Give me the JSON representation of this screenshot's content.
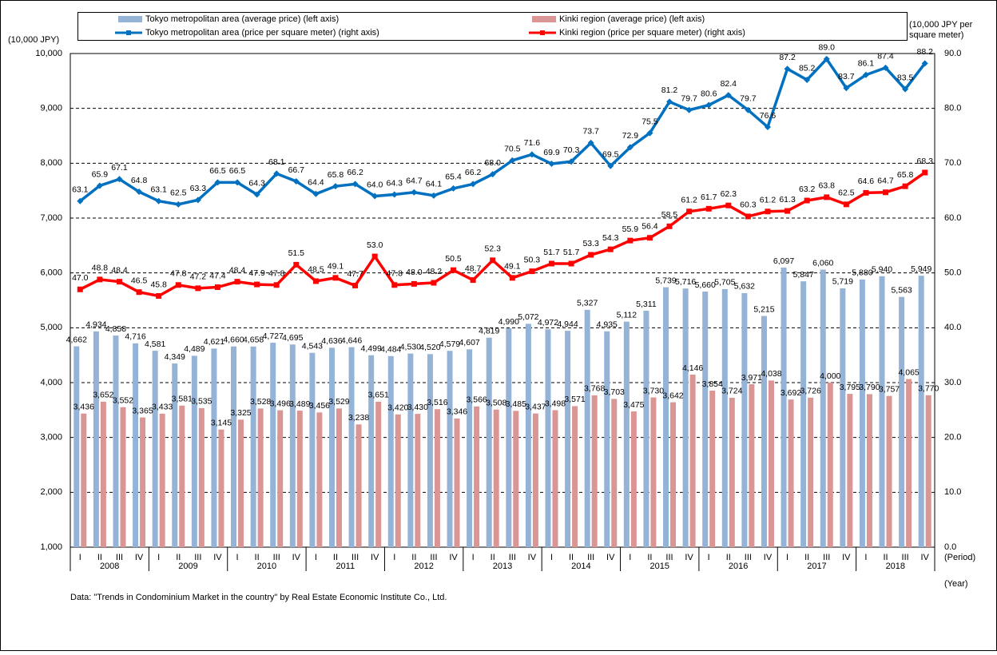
{
  "chart_data": {
    "type": "bar",
    "left_axis_label": "(10,000 JPY)",
    "right_axis_label": "(10,000 JPY per square meter)",
    "period_label": "(Period)",
    "year_label": "(Year)",
    "note": "Data: \"Trends in Condominium Market in the country\" by Real Estate Economic Institute Co., Ltd.",
    "categories": [
      "I",
      "II",
      "III",
      "IV",
      "I",
      "II",
      "III",
      "IV",
      "I",
      "II",
      "III",
      "IV",
      "I",
      "II",
      "III",
      "IV",
      "I",
      "II",
      "III",
      "IV",
      "I",
      "II",
      "III",
      "IV",
      "I",
      "II",
      "III",
      "IV",
      "I",
      "II",
      "III",
      "IV",
      "I",
      "II",
      "III",
      "IV",
      "I",
      "II",
      "III",
      "IV",
      "I",
      "II",
      "III",
      "IV"
    ],
    "years": [
      "2008",
      "2009",
      "2010",
      "2011",
      "2012",
      "2013",
      "2014",
      "2015",
      "2016",
      "2017",
      "2018"
    ],
    "ylim": [
      1000,
      10000
    ],
    "yticks": [
      {
        "value": 1000,
        "label": "1,000"
      },
      {
        "value": 2000,
        "label": "2,000"
      },
      {
        "value": 3000,
        "label": "3,000"
      },
      {
        "value": 4000,
        "label": "4,000"
      },
      {
        "value": 5000,
        "label": "5,000"
      },
      {
        "value": 6000,
        "label": "6,000"
      },
      {
        "value": 7000,
        "label": "7,000"
      },
      {
        "value": 8000,
        "label": "8,000"
      },
      {
        "value": 9000,
        "label": "9,000"
      },
      {
        "value": 10000,
        "label": "10,000"
      }
    ],
    "y2lim": [
      0,
      90
    ],
    "y2ticks": [
      {
        "value": 0,
        "label": "0.0"
      },
      {
        "value": 10,
        "label": "10.0"
      },
      {
        "value": 20,
        "label": "20.0"
      },
      {
        "value": 30,
        "label": "30.0"
      },
      {
        "value": 40,
        "label": "40.0"
      },
      {
        "value": 50,
        "label": "50.0"
      },
      {
        "value": 60,
        "label": "60.0"
      },
      {
        "value": 70,
        "label": "70.0"
      },
      {
        "value": 80,
        "label": "80.0"
      },
      {
        "value": 90,
        "label": "90.0"
      }
    ],
    "grid": true,
    "series": [
      {
        "name": "Tokyo metropolitan area (average price) (left axis)",
        "type": "bar",
        "color": "#95b3d7",
        "values": [
          4662,
          4934,
          4858,
          4716,
          4581,
          4349,
          4489,
          4621,
          4660,
          4658,
          4727,
          4695,
          4543,
          4636,
          4646,
          4499,
          4484,
          4530,
          4520,
          4579,
          4607,
          4819,
          4990,
          5072,
          4972,
          4944,
          5327,
          4935,
          5112,
          5311,
          5739,
          5716,
          5660,
          5705,
          5632,
          5215,
          6097,
          5847,
          6060,
          5719,
          5880,
          5940,
          5563,
          5949
        ],
        "value_labels": [
          "4,662",
          "4,934",
          "4,858",
          "4,716",
          "4,581",
          "4,349",
          "4,489",
          "4,621",
          "4,660",
          "4,658",
          "4,727",
          "4,695",
          "4,543",
          "4,636",
          "4,646",
          "4,499",
          "4,484",
          "4,530",
          "4,520",
          "4,579",
          "4,607",
          "4,819",
          "4,990",
          "5,072",
          "4,972",
          "4,944",
          "5,327",
          "4,935",
          "5,112",
          "5,311",
          "5,739",
          "5,716",
          "5,660",
          "5,705",
          "5,632",
          "5,215",
          "6,097",
          "5,847",
          "6,060",
          "5,719",
          "5,880",
          "5,940",
          "5,563",
          "5,949"
        ]
      },
      {
        "name": "Kinki region (average price) (left axis)",
        "type": "bar",
        "color": "#d99694",
        "values": [
          3436,
          3652,
          3552,
          3365,
          3433,
          3581,
          3535,
          3145,
          3325,
          3528,
          3496,
          3489,
          3456,
          3529,
          3238,
          3651,
          3420,
          3430,
          3516,
          3346,
          3566,
          3508,
          3485,
          3437,
          3498,
          3571,
          3768,
          3703,
          3475,
          3730,
          3642,
          4146,
          3854,
          3724,
          3971,
          4038,
          3692,
          3726,
          4000,
          3795,
          3790,
          3757,
          4065,
          3770
        ],
        "value_labels": [
          "3,436",
          "3,652",
          "3,552",
          "3,365",
          "3,433",
          "3,581",
          "3,535",
          "3,145",
          "3,325",
          "3,528",
          "3,496",
          "3,489",
          "3,456",
          "3,529",
          "3,238",
          "3,651",
          "3,420",
          "3,430",
          "3,516",
          "3,346",
          "3,566",
          "3,508",
          "3,485",
          "3,437",
          "3,498",
          "3,571",
          "3,768",
          "3,703",
          "3,475",
          "3,730",
          "3,642",
          "4,146",
          "3,854",
          "3,724",
          "3,971",
          "4,038",
          "3,692",
          "3,726",
          "4,000",
          "3,795",
          "3,790",
          "3,757",
          "4,065",
          "3,770"
        ]
      },
      {
        "name": "Tokyo metropolitan area (price per square meter) (right axis)",
        "type": "line",
        "axis": "y2",
        "color": "#0070c0",
        "values": [
          63.1,
          65.9,
          67.1,
          64.8,
          63.1,
          62.5,
          63.3,
          66.5,
          66.5,
          64.3,
          68.1,
          66.7,
          64.4,
          65.8,
          66.2,
          64.0,
          64.3,
          64.7,
          64.1,
          65.4,
          66.2,
          68.0,
          70.5,
          71.6,
          69.9,
          70.3,
          73.7,
          69.5,
          72.9,
          75.5,
          81.2,
          79.7,
          80.6,
          82.4,
          79.7,
          76.6,
          87.2,
          85.2,
          89.0,
          83.7,
          86.1,
          87.4,
          83.5,
          88.2
        ],
        "value_labels": [
          "63.1",
          "65.9",
          "67.1",
          "64.8",
          "63.1",
          "62.5",
          "63.3",
          "66.5",
          "66.5",
          "64.3",
          "68.1",
          "66.7",
          "64.4",
          "65.8",
          "66.2",
          "64.0",
          "64.3",
          "64.7",
          "64.1",
          "65.4",
          "66.2",
          "68.0",
          "70.5",
          "71.6",
          "69.9",
          "70.3",
          "73.7",
          "69.5",
          "72.9",
          "75.5",
          "81.2",
          "79.7",
          "80.6",
          "82.4",
          "79.7",
          "76.6",
          "87.2",
          "85.2",
          "89.0",
          "83.7",
          "86.1",
          "87.4",
          "83.5",
          "88.2"
        ]
      },
      {
        "name": "Kinki region (price per square meter) (right axis)",
        "type": "line",
        "axis": "y2",
        "color": "#ff0000",
        "values": [
          47.0,
          48.8,
          48.4,
          46.5,
          45.8,
          47.8,
          47.2,
          47.4,
          48.4,
          47.9,
          47.8,
          51.5,
          48.5,
          49.1,
          47.7,
          53.0,
          47.8,
          48.0,
          48.2,
          50.5,
          48.7,
          52.3,
          49.1,
          50.3,
          51.7,
          51.7,
          53.3,
          54.3,
          55.9,
          56.4,
          58.5,
          61.2,
          61.7,
          62.3,
          60.3,
          61.2,
          61.3,
          63.2,
          63.8,
          62.5,
          64.6,
          64.7,
          65.8,
          68.3
        ],
        "value_labels": [
          "47.0",
          "48.8",
          "48.4",
          "46.5",
          "45.8",
          "47.8",
          "47.2",
          "47.4",
          "48.4",
          "47.9",
          "47.8",
          "51.5",
          "48.5",
          "49.1",
          "47.7",
          "53.0",
          "47.8",
          "48.0",
          "48.2",
          "50.5",
          "48.7",
          "52.3",
          "49.1",
          "50.3",
          "51.7",
          "51.7",
          "53.3",
          "54.3",
          "55.9",
          "56.4",
          "58.5",
          "61.2",
          "61.7",
          "62.3",
          "60.3",
          "61.2",
          "61.3",
          "63.2",
          "63.8",
          "62.5",
          "64.6",
          "64.7",
          "65.8",
          "68.3"
        ]
      }
    ]
  }
}
